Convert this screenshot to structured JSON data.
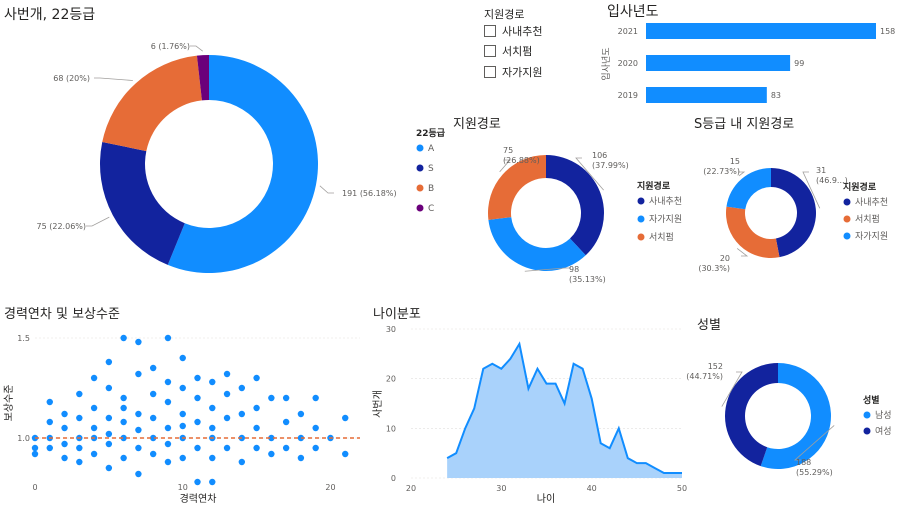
{
  "titles": {
    "grade_donut": "사번개, 22등급",
    "join_year": "입사년도",
    "route_donut": "지원경로",
    "s_route_donut": "S등급 내 지원경로",
    "scatter": "경력연차 및 보상수준",
    "age": "나이분포",
    "gender": "성별"
  },
  "slicer": {
    "title": "지원경로",
    "items": [
      "사내추천",
      "서치펌",
      "자가지원"
    ]
  },
  "colors": {
    "blue": "#118DFF",
    "navy": "#12239E",
    "orange": "#E66C37",
    "purple": "#6B007B",
    "area_fill": "#A9D2FB",
    "grid": "#E1DFDD",
    "axis_text": "#605E5C"
  },
  "chart_data": [
    {
      "id": "grade",
      "type": "pie",
      "donut": true,
      "title": "사번개, 22등급",
      "legend_title": "22등급",
      "legend_position": "right",
      "slices": [
        {
          "label": "A",
          "value": 191,
          "text": "191 (56.18%)",
          "color": "#118DFF"
        },
        {
          "label": "S",
          "value": 75,
          "text": "75 (22.06%)",
          "color": "#12239E"
        },
        {
          "label": "B",
          "value": 68,
          "text": "68 (20%)",
          "color": "#E66C37"
        },
        {
          "label": "C",
          "value": 6,
          "text": "6 (1.76%)",
          "color": "#6B007B"
        }
      ]
    },
    {
      "id": "year",
      "type": "bar",
      "orientation": "horizontal",
      "title": "입사년도",
      "ylabel": "입사년도",
      "categories": [
        "2021",
        "2020",
        "2019"
      ],
      "values": [
        158,
        99,
        83
      ],
      "xlim": [
        0,
        158
      ]
    },
    {
      "id": "route",
      "type": "pie",
      "donut": true,
      "title": "지원경로",
      "legend_title": "지원경로",
      "legend_position": "right",
      "slices": [
        {
          "label": "사내추천",
          "value": 106,
          "text": "106 (37.99%)",
          "color": "#12239E"
        },
        {
          "label": "자가지원",
          "value": 98,
          "text": "98 (35.13%)",
          "color": "#118DFF"
        },
        {
          "label": "서치펌",
          "value": 75,
          "text": "75 (26.88%)",
          "color": "#E66C37"
        }
      ]
    },
    {
      "id": "sroute",
      "type": "pie",
      "donut": true,
      "title": "S등급 내 지원경로",
      "legend_title": "지원경로",
      "legend_position": "right",
      "slices": [
        {
          "label": "사내추천",
          "value": 31,
          "text": "31 (46.9...)",
          "color": "#12239E"
        },
        {
          "label": "서치펌",
          "value": 20,
          "text": "20 (30.3%)",
          "color": "#E66C37"
        },
        {
          "label": "자가지원",
          "value": 15,
          "text": "15 (22.73%)",
          "color": "#118DFF"
        }
      ]
    },
    {
      "id": "scatter",
      "type": "scatter",
      "title": "경력연차 및 보상수준",
      "xlabel": "경력연차",
      "ylabel": "보상수준",
      "xlim": [
        0,
        22
      ],
      "ylim": [
        0.8,
        1.55
      ],
      "xticks": [
        "0",
        "10",
        "20"
      ],
      "yticks": [
        "1.0",
        "1.5"
      ],
      "reference_y": 1.0,
      "points": [
        [
          0,
          0.92
        ],
        [
          0,
          1.0
        ],
        [
          0,
          0.95
        ],
        [
          1,
          1.0
        ],
        [
          1,
          1.08
        ],
        [
          1,
          0.95
        ],
        [
          1,
          1.18
        ],
        [
          2,
          0.9
        ],
        [
          2,
          1.05
        ],
        [
          2,
          1.12
        ],
        [
          2,
          0.97
        ],
        [
          3,
          1.0
        ],
        [
          3,
          1.1
        ],
        [
          3,
          0.88
        ],
        [
          3,
          1.22
        ],
        [
          3,
          0.95
        ],
        [
          4,
          1.0
        ],
        [
          4,
          1.15
        ],
        [
          4,
          0.92
        ],
        [
          4,
          1.3
        ],
        [
          4,
          1.05
        ],
        [
          5,
          0.97
        ],
        [
          5,
          1.1
        ],
        [
          5,
          1.25
        ],
        [
          5,
          0.85
        ],
        [
          5,
          1.38
        ],
        [
          5,
          1.02
        ],
        [
          6,
          1.0
        ],
        [
          6,
          1.15
        ],
        [
          6,
          0.9
        ],
        [
          6,
          1.5
        ],
        [
          6,
          1.2
        ],
        [
          6,
          1.08
        ],
        [
          7,
          0.95
        ],
        [
          7,
          1.12
        ],
        [
          7,
          1.32
        ],
        [
          7,
          0.82
        ],
        [
          7,
          1.48
        ],
        [
          7,
          1.04
        ],
        [
          8,
          1.0
        ],
        [
          8,
          1.22
        ],
        [
          8,
          0.92
        ],
        [
          8,
          1.35
        ],
        [
          8,
          1.1
        ],
        [
          9,
          1.05
        ],
        [
          9,
          1.18
        ],
        [
          9,
          0.88
        ],
        [
          9,
          1.5
        ],
        [
          9,
          1.28
        ],
        [
          9,
          0.97
        ],
        [
          10,
          1.0
        ],
        [
          10,
          1.12
        ],
        [
          10,
          1.25
        ],
        [
          10,
          0.9
        ],
        [
          10,
          1.4
        ],
        [
          10,
          1.06
        ],
        [
          11,
          1.08
        ],
        [
          11,
          0.95
        ],
        [
          11,
          1.2
        ],
        [
          11,
          1.3
        ],
        [
          11,
          0.78
        ],
        [
          12,
          1.0
        ],
        [
          12,
          1.15
        ],
        [
          12,
          0.9
        ],
        [
          12,
          1.28
        ],
        [
          12,
          1.05
        ],
        [
          12,
          0.78
        ],
        [
          13,
          1.1
        ],
        [
          13,
          0.95
        ],
        [
          13,
          1.22
        ],
        [
          13,
          1.32
        ],
        [
          14,
          1.0
        ],
        [
          14,
          1.12
        ],
        [
          14,
          0.88
        ],
        [
          14,
          1.25
        ],
        [
          15,
          1.05
        ],
        [
          15,
          0.95
        ],
        [
          15,
          1.15
        ],
        [
          15,
          1.3
        ],
        [
          16,
          1.0
        ],
        [
          16,
          1.2
        ],
        [
          16,
          0.92
        ],
        [
          17,
          1.08
        ],
        [
          17,
          0.95
        ],
        [
          17,
          1.2
        ],
        [
          18,
          1.0
        ],
        [
          18,
          1.12
        ],
        [
          18,
          0.9
        ],
        [
          19,
          1.05
        ],
        [
          19,
          0.95
        ],
        [
          19,
          1.2
        ],
        [
          20,
          1.0
        ],
        [
          21,
          1.1
        ],
        [
          21,
          0.92
        ]
      ]
    },
    {
      "id": "age",
      "type": "area",
      "title": "나이분포",
      "xlabel": "나이",
      "ylabel": "사번개",
      "xlim": [
        20,
        50
      ],
      "ylim": [
        0,
        30
      ],
      "xticks": [
        "20",
        "30",
        "40",
        "50"
      ],
      "yticks": [
        "0",
        "10",
        "20",
        "30"
      ],
      "x": [
        24,
        25,
        26,
        27,
        28,
        29,
        30,
        31,
        32,
        33,
        34,
        35,
        36,
        37,
        38,
        39,
        40,
        41,
        42,
        43,
        44,
        45,
        46,
        47,
        48,
        49,
        50
      ],
      "y": [
        4,
        5,
        10,
        14,
        22,
        23,
        22,
        24,
        27,
        18,
        22,
        19,
        19,
        15,
        23,
        22,
        16,
        7,
        6,
        10,
        4,
        3,
        3,
        2,
        1,
        1,
        1
      ]
    },
    {
      "id": "gender",
      "type": "pie",
      "donut": true,
      "title": "성별",
      "legend_title": "성별",
      "legend_position": "right",
      "slices": [
        {
          "label": "남성",
          "value": 188,
          "text": "188 (55.29%)",
          "color": "#118DFF"
        },
        {
          "label": "여성",
          "value": 152,
          "text": "152 (44.71%)",
          "color": "#12239E"
        }
      ]
    }
  ]
}
